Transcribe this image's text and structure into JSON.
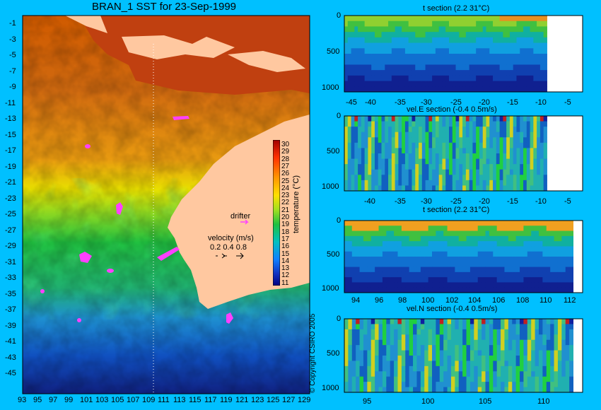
{
  "colors": {
    "background": "#00c0ff",
    "land": "#ffc8a0",
    "drifter": "#ff40ff"
  },
  "map": {
    "title": "BRAN_1 SST for 23-Sep-1999",
    "x_ticks": [
      "93",
      "95",
      "97",
      "99",
      "101",
      "103",
      "105",
      "107",
      "109",
      "111",
      "113",
      "115",
      "117",
      "119",
      "121",
      "123",
      "125",
      "127",
      "129"
    ],
    "y_ticks": [
      "-1",
      "-3",
      "-5",
      "-7",
      "-9",
      "-11",
      "-13",
      "-15",
      "-17",
      "-19",
      "-21",
      "-23",
      "-25",
      "-27",
      "-29",
      "-31",
      "-33",
      "-35",
      "-37",
      "-39",
      "-41",
      "-43",
      "-45"
    ],
    "drifter_label": "drifter",
    "velocity_label": "velocity (m/s)",
    "velocity_scale": "0.2 0.4 0.8",
    "colorbar_label": "temperature (°C)",
    "colorbar_ticks": [
      "30",
      "29",
      "28",
      "27",
      "26",
      "25",
      "24",
      "23",
      "22",
      "21",
      "20",
      "19",
      "18",
      "17",
      "16",
      "15",
      "14",
      "13",
      "12",
      "11"
    ],
    "copyright": "© Copyright CSIRO 2005"
  },
  "chart_data": [
    {
      "type": "heatmap",
      "title": "BRAN_1 SST for 23-Sep-1999",
      "x_range": [
        93,
        130
      ],
      "y_range": [
        -45,
        0
      ],
      "colorbar": {
        "label": "temperature (°C)",
        "range": [
          11,
          30
        ]
      }
    },
    {
      "type": "heatmap",
      "title": "t section (2.2     31°C)",
      "x_range": [
        -45,
        -2
      ],
      "y_range": [
        0,
        1050
      ],
      "x_ticks": [
        "-45",
        "-40",
        "-35",
        "-30",
        "-25",
        "-20",
        "-15",
        "-10",
        "-5"
      ],
      "y_ticks": [
        "0",
        "500",
        "1000"
      ]
    },
    {
      "type": "heatmap",
      "title": "vel.E section (-0.4     0.5m/s)",
      "x_range": [
        -45,
        -2
      ],
      "y_range": [
        0,
        1050
      ],
      "x_ticks": [
        "-40",
        "-35",
        "-30",
        "-25",
        "-20",
        "-15",
        "-10",
        "-5"
      ],
      "y_ticks": [
        "0",
        "500",
        "1000"
      ]
    },
    {
      "type": "heatmap",
      "title": "t section (2.2     31°C)",
      "x_range": [
        93,
        114
      ],
      "y_range": [
        0,
        1050
      ],
      "x_ticks": [
        "94",
        "96",
        "98",
        "100",
        "102",
        "104",
        "106",
        "108",
        "110",
        "112"
      ],
      "y_ticks": [
        "0",
        "500",
        "1000"
      ]
    },
    {
      "type": "heatmap",
      "title": "vel.N section (-0.4     0.5m/s)",
      "x_range": [
        93,
        114
      ],
      "y_range": [
        0,
        1050
      ],
      "x_ticks": [
        "95",
        "100",
        "105",
        "110"
      ],
      "y_ticks": [
        "0",
        "500",
        "1000"
      ]
    }
  ]
}
